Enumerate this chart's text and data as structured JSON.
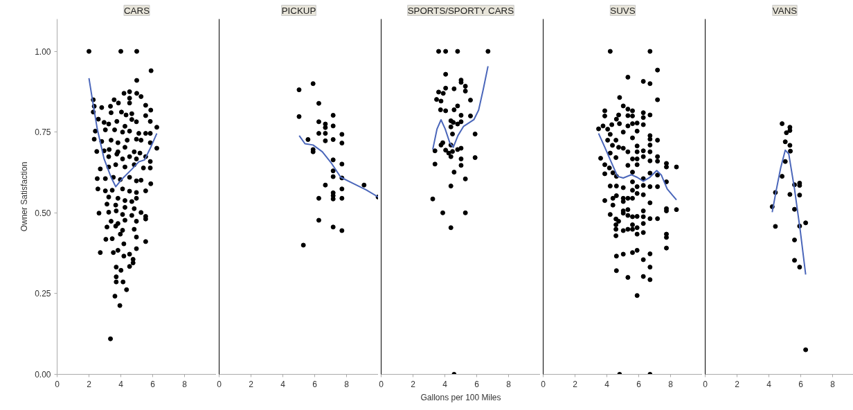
{
  "chart_data": [
    {
      "type": "scatter",
      "title": "CARS",
      "ylabel": "Owner Satisfaction",
      "xlim": [
        0,
        10
      ],
      "xticks": [
        0,
        2,
        4,
        6,
        8
      ],
      "ylim": [
        0,
        1.1
      ],
      "yticks": [
        {
          "value": 0,
          "label": "0.00"
        },
        {
          "value": 0.25,
          "label": "0.25"
        },
        {
          "value": 0.5,
          "label": "0.50"
        },
        {
          "value": 0.75,
          "label": "0.75"
        },
        {
          "value": 1,
          "label": "1.00"
        }
      ],
      "grid": false,
      "marker": "circle",
      "series": [
        {
          "color": "#000000",
          "x": [
            2.0,
            4.0,
            5.0,
            5.9,
            5.0,
            4.2,
            4.55,
            5.0,
            5.27,
            2.27,
            3.58,
            3.85,
            4.55,
            4.55,
            2.33,
            2.8,
            3.35,
            3.39,
            2.27,
            4.04,
            4.33,
            4.69,
            5.56,
            5.88,
            5.56,
            2.59,
            2.95,
            3.24,
            3.75,
            4.26,
            4.69,
            4.98,
            5.85,
            6.26,
            2.4,
            3.03,
            3.61,
            4.11,
            4.55,
            5.13,
            5.56,
            5.85,
            2.33,
            2.8,
            3.39,
            3.82,
            4.4,
            4.98,
            5.27,
            5.85,
            2.49,
            2.95,
            3.27,
            3.82,
            4.26,
            4.84,
            5.2,
            6.26,
            3.24,
            3.75,
            4.11,
            4.55,
            4.98,
            5.56,
            5.85,
            2.71,
            3.24,
            3.68,
            4.26,
            4.84,
            5.42,
            5.85,
            2.52,
            3.03,
            3.53,
            3.97,
            4.55,
            4.98,
            5.27,
            5.88,
            2.56,
            3.03,
            3.46,
            4.11,
            4.55,
            4.98,
            5.56,
            3.24,
            3.82,
            4.26,
            4.69,
            4.98,
            3.13,
            3.68,
            4.26,
            4.84,
            2.63,
            3.24,
            3.71,
            4.11,
            4.69,
            5.27,
            5.56,
            5.56,
            3.39,
            3.82,
            4.26,
            4.98,
            3.13,
            3.68,
            4.11,
            4.84,
            3.06,
            3.46,
            3.97,
            4.98,
            5.56,
            4.19,
            2.71,
            3.53,
            3.82,
            4.98,
            4.19,
            4.55,
            4.77,
            4.77,
            4.55,
            3.71,
            4.01,
            3.71,
            3.71,
            4.14,
            4.36,
            3.63,
            3.94,
            3.35
          ],
          "values": [
            1.0,
            1.0,
            1.0,
            0.94,
            0.91,
            0.87,
            0.875,
            0.87,
            0.86,
            0.85,
            0.85,
            0.84,
            0.855,
            0.84,
            0.83,
            0.826,
            0.83,
            0.81,
            0.812,
            0.812,
            0.803,
            0.807,
            0.833,
            0.818,
            0.801,
            0.79,
            0.78,
            0.775,
            0.783,
            0.768,
            0.789,
            0.782,
            0.783,
            0.765,
            0.753,
            0.757,
            0.757,
            0.75,
            0.753,
            0.746,
            0.746,
            0.746,
            0.728,
            0.721,
            0.725,
            0.717,
            0.725,
            0.728,
            0.725,
            0.717,
            0.69,
            0.692,
            0.696,
            0.689,
            0.703,
            0.689,
            0.685,
            0.7,
            0.674,
            0.682,
            0.667,
            0.674,
            0.667,
            0.674,
            0.659,
            0.636,
            0.642,
            0.649,
            0.642,
            0.649,
            0.639,
            0.639,
            0.606,
            0.606,
            0.61,
            0.603,
            0.61,
            0.599,
            0.601,
            0.59,
            0.574,
            0.568,
            0.57,
            0.574,
            0.567,
            0.563,
            0.568,
            0.549,
            0.545,
            0.538,
            0.535,
            0.545,
            0.527,
            0.524,
            0.517,
            0.513,
            0.499,
            0.502,
            0.506,
            0.495,
            0.492,
            0.501,
            0.489,
            0.481,
            0.474,
            0.467,
            0.477,
            0.474,
            0.456,
            0.459,
            0.446,
            0.449,
            0.418,
            0.42,
            0.434,
            0.425,
            0.411,
            0.404,
            0.377,
            0.377,
            0.384,
            0.389,
            0.366,
            0.372,
            0.356,
            0.345,
            0.334,
            0.332,
            0.322,
            0.302,
            0.286,
            0.286,
            0.262,
            0.242,
            0.213,
            0.11
          ]
        },
        {
          "type": "line",
          "marker": "none",
          "color": "#4a66ba",
          "x": [
            2.0,
            2.23,
            2.52,
            2.95,
            3.39,
            3.68,
            4.04,
            4.69,
            5.13,
            5.49,
            5.85,
            6.26
          ],
          "values": [
            0.917,
            0.846,
            0.76,
            0.667,
            0.61,
            0.581,
            0.603,
            0.635,
            0.658,
            0.664,
            0.7,
            0.746
          ]
        }
      ]
    },
    {
      "type": "scatter",
      "title": "PICKUP",
      "xlim": [
        0,
        10
      ],
      "xticks": [
        0,
        2,
        4,
        6,
        8
      ],
      "ylim": [
        0,
        1.1
      ],
      "yticks": [
        {
          "value": 0,
          "label": null
        },
        {
          "value": 0.25,
          "label": null
        },
        {
          "value": 0.5,
          "label": null
        },
        {
          "value": 0.75,
          "label": null
        },
        {
          "value": 1,
          "label": null
        }
      ],
      "tick_labels": "x",
      "grid": false,
      "marker": "circle",
      "series": [
        {
          "color": "#000000",
          "x": [
            5.9,
            5.02,
            6.26,
            5.02,
            7.16,
            6.26,
            6.67,
            6.67,
            7.16,
            6.26,
            6.67,
            7.71,
            5.58,
            6.67,
            7.16,
            7.71,
            5.9,
            5.9,
            7.16,
            7.71,
            7.16,
            7.16,
            7.71,
            6.67,
            9.1,
            7.71,
            7.16,
            7.16,
            7.16,
            6.26,
            7.71,
            9.98,
            6.26,
            7.16,
            7.71,
            5.29
          ],
          "values": [
            0.9,
            0.881,
            0.839,
            0.798,
            0.802,
            0.782,
            0.775,
            0.764,
            0.769,
            0.746,
            0.746,
            0.743,
            0.727,
            0.723,
            0.727,
            0.716,
            0.696,
            0.689,
            0.664,
            0.651,
            0.63,
            0.612,
            0.608,
            0.586,
            0.586,
            0.574,
            0.562,
            0.553,
            0.543,
            0.545,
            0.545,
            0.549,
            0.477,
            0.456,
            0.445,
            0.4
          ]
        },
        {
          "type": "line",
          "marker": "none",
          "color": "#4a66ba",
          "x": [
            5.03,
            5.39,
            5.9,
            6.48,
            7.06,
            7.64,
            8.37,
            9.23,
            9.99
          ],
          "values": [
            0.739,
            0.714,
            0.71,
            0.689,
            0.653,
            0.61,
            0.592,
            0.571,
            0.549
          ]
        }
      ]
    },
    {
      "type": "scatter",
      "title": "SPORTS/SPORTY CARS",
      "xlabel": "Gallons per 100 Miles",
      "xlim": [
        0,
        10
      ],
      "xticks": [
        0,
        2,
        4,
        6,
        8
      ],
      "ylim": [
        0,
        1.1
      ],
      "yticks": [
        {
          "value": 0,
          "label": null
        },
        {
          "value": 0.25,
          "label": null
        },
        {
          "value": 0.5,
          "label": null
        },
        {
          "value": 0.75,
          "label": null
        },
        {
          "value": 1,
          "label": null
        }
      ],
      "tick_labels": "x",
      "grid": false,
      "marker": "circle",
      "series": [
        {
          "color": "#000000",
          "x": [
            3.61,
            4.05,
            4.8,
            6.71,
            4.05,
            5.02,
            5.02,
            5.29,
            5.29,
            4.05,
            4.58,
            3.61,
            3.9,
            3.48,
            3.76,
            5.61,
            3.73,
            4.05,
            4.58,
            4.8,
            5.02,
            5.61,
            4.38,
            4.53,
            4.8,
            5.02,
            4.38,
            4.48,
            5.9,
            3.76,
            3.87,
            4.38,
            3.38,
            4.05,
            4.24,
            4.38,
            4.48,
            4.8,
            5.02,
            5.02,
            5.9,
            3.38,
            5.02,
            4.58,
            5.29,
            4.38,
            3.24,
            3.87,
            5.29,
            4.38,
            4.58
          ],
          "values": [
            1.0,
            1.0,
            1.0,
            1.0,
            0.929,
            0.911,
            0.904,
            0.892,
            0.877,
            0.886,
            0.884,
            0.874,
            0.87,
            0.851,
            0.846,
            0.849,
            0.819,
            0.816,
            0.819,
            0.831,
            0.802,
            0.8,
            0.785,
            0.78,
            0.775,
            0.782,
            0.766,
            0.744,
            0.744,
            0.71,
            0.717,
            0.71,
            0.692,
            0.694,
            0.685,
            0.674,
            0.69,
            0.696,
            0.7,
            0.667,
            0.671,
            0.651,
            0.647,
            0.626,
            0.605,
            0.583,
            0.543,
            0.5,
            0.5,
            0.454,
            0.0
          ]
        },
        {
          "type": "line",
          "marker": "none",
          "color": "#4a66ba",
          "x": [
            3.24,
            3.51,
            3.76,
            4.02,
            4.31,
            4.53,
            4.82,
            5.18,
            5.83,
            6.12,
            6.41,
            6.71
          ],
          "values": [
            0.696,
            0.76,
            0.788,
            0.76,
            0.717,
            0.703,
            0.739,
            0.768,
            0.789,
            0.818,
            0.882,
            0.954
          ]
        }
      ]
    },
    {
      "type": "scatter",
      "title": "SUVS",
      "xlim": [
        0,
        10
      ],
      "xticks": [
        0,
        2,
        4,
        6,
        8
      ],
      "ylim": [
        0,
        1.1
      ],
      "yticks": [
        {
          "value": 0,
          "label": null
        },
        {
          "value": 0.25,
          "label": null
        },
        {
          "value": 0.5,
          "label": null
        },
        {
          "value": 0.75,
          "label": null
        },
        {
          "value": 1,
          "label": null
        }
      ],
      "tick_labels": "x",
      "grid": false,
      "marker": "circle",
      "series": [
        {
          "color": "#000000",
          "x": [
            4.21,
            6.71,
            7.18,
            5.32,
            6.29,
            6.71,
            7.18,
            4.8,
            5.03,
            5.32,
            5.61,
            3.87,
            3.87,
            4.74,
            4.6,
            5.32,
            5.61,
            6.29,
            6.29,
            6.71,
            3.48,
            3.76,
            4.05,
            4.31,
            4.79,
            5.32,
            5.61,
            5.9,
            6.29,
            5.9,
            5.03,
            4.21,
            4.05,
            4.57,
            5.61,
            6.71,
            6.71,
            7.18,
            4.35,
            4.74,
            5.03,
            5.9,
            6.71,
            4.21,
            5.32,
            5.9,
            6.29,
            6.71,
            3.61,
            4.57,
            5.61,
            5.9,
            6.29,
            7.18,
            7.18,
            6.71,
            3.87,
            4.16,
            5.32,
            5.9,
            7.74,
            7.74,
            8.37,
            3.87,
            4.38,
            5.61,
            6.71,
            7.18,
            4.6,
            6.29,
            5.61,
            7.74,
            4.21,
            4.6,
            5.03,
            5.9,
            6.29,
            6.71,
            7.18,
            5.61,
            3.87,
            4.38,
            4.6,
            5.03,
            5.32,
            5.61,
            5.9,
            6.29,
            5.03,
            6.71,
            4.38,
            7.74,
            7.74,
            8.37,
            4.21,
            5.03,
            5.32,
            5.03,
            5.32,
            5.61,
            5.9,
            6.29,
            6.29,
            6.71,
            7.18,
            4.57,
            4.74,
            4.57,
            4.57,
            4.57,
            5.03,
            5.32,
            5.61,
            5.61,
            5.9,
            5.9,
            6.29,
            6.29,
            7.74,
            7.74,
            7.74,
            4.6,
            5.03,
            5.61,
            5.9,
            6.29,
            6.71,
            6.71,
            4.6,
            5.32,
            6.29,
            6.71,
            5.9,
            4.8,
            6.71
          ],
          "values": [
            1.0,
            1.0,
            0.942,
            0.92,
            0.907,
            0.9,
            0.85,
            0.857,
            0.831,
            0.821,
            0.816,
            0.816,
            0.8,
            0.803,
            0.79,
            0.801,
            0.8,
            0.81,
            0.795,
            0.803,
            0.76,
            0.769,
            0.759,
            0.773,
            0.776,
            0.769,
            0.776,
            0.778,
            0.773,
            0.753,
            0.75,
            0.743,
            0.725,
            0.725,
            0.732,
            0.739,
            0.728,
            0.725,
            0.709,
            0.703,
            0.7,
            0.707,
            0.71,
            0.685,
            0.689,
            0.689,
            0.692,
            0.689,
            0.669,
            0.671,
            0.667,
            0.667,
            0.674,
            0.674,
            0.66,
            0.661,
            0.649,
            0.639,
            0.647,
            0.649,
            0.653,
            0.642,
            0.642,
            0.621,
            0.624,
            0.626,
            0.623,
            0.617,
            0.613,
            0.606,
            0.596,
            0.596,
            0.583,
            0.583,
            0.578,
            0.581,
            0.585,
            0.581,
            0.581,
            0.57,
            0.538,
            0.545,
            0.553,
            0.545,
            0.545,
            0.545,
            0.56,
            0.556,
            0.535,
            0.531,
            0.524,
            0.513,
            0.506,
            0.51,
            0.495,
            0.506,
            0.51,
            0.499,
            0.492,
            0.488,
            0.489,
            0.506,
            0.488,
            0.482,
            0.482,
            0.481,
            0.474,
            0.463,
            0.449,
            0.429,
            0.445,
            0.449,
            0.463,
            0.449,
            0.454,
            0.434,
            0.467,
            0.439,
            0.434,
            0.424,
            0.391,
            0.366,
            0.372,
            0.377,
            0.384,
            0.355,
            0.373,
            0.332,
            0.321,
            0.3,
            0.303,
            0.293,
            0.244,
            0.0,
            0.0
          ]
        },
        {
          "type": "line",
          "marker": "none",
          "color": "#4a66ba",
          "x": [
            3.48,
            3.87,
            4.31,
            4.67,
            5.03,
            5.54,
            5.9,
            6.29,
            6.7,
            7.13,
            7.42,
            7.79,
            8.37
          ],
          "values": [
            0.746,
            0.703,
            0.653,
            0.613,
            0.608,
            0.618,
            0.61,
            0.598,
            0.61,
            0.631,
            0.617,
            0.574,
            0.54
          ]
        }
      ]
    },
    {
      "type": "scatter",
      "title": "VANS",
      "xlim": [
        0,
        10
      ],
      "xticks": [
        0,
        2,
        4,
        6,
        8
      ],
      "ylim": [
        0,
        1.1
      ],
      "yticks": [
        {
          "value": 0,
          "label": null
        },
        {
          "value": 0.25,
          "label": null
        },
        {
          "value": 0.5,
          "label": null
        },
        {
          "value": 0.75,
          "label": null
        },
        {
          "value": 1,
          "label": null
        }
      ],
      "tick_labels": "x",
      "grid": false,
      "marker": "circle",
      "series": [
        {
          "color": "#000000",
          "x": [
            4.83,
            5.32,
            5.32,
            5.1,
            5.03,
            5.32,
            5.35,
            5.03,
            4.83,
            5.61,
            5.93,
            5.93,
            4.41,
            5.32,
            5.93,
            4.21,
            5.61,
            4.41,
            5.93,
            6.31,
            5.61,
            5.61,
            5.93,
            6.31
          ],
          "values": [
            0.776,
            0.765,
            0.755,
            0.748,
            0.72,
            0.709,
            0.691,
            0.659,
            0.613,
            0.587,
            0.592,
            0.585,
            0.563,
            0.557,
            0.555,
            0.519,
            0.511,
            0.458,
            0.459,
            0.469,
            0.416,
            0.353,
            0.332,
            0.076
          ]
        },
        {
          "type": "line",
          "marker": "none",
          "color": "#4a66ba",
          "x": [
            4.21,
            4.45,
            4.74,
            5.03,
            5.25,
            5.61,
            5.97,
            6.31
          ],
          "values": [
            0.502,
            0.567,
            0.639,
            0.694,
            0.682,
            0.574,
            0.445,
            0.309
          ]
        }
      ]
    }
  ]
}
